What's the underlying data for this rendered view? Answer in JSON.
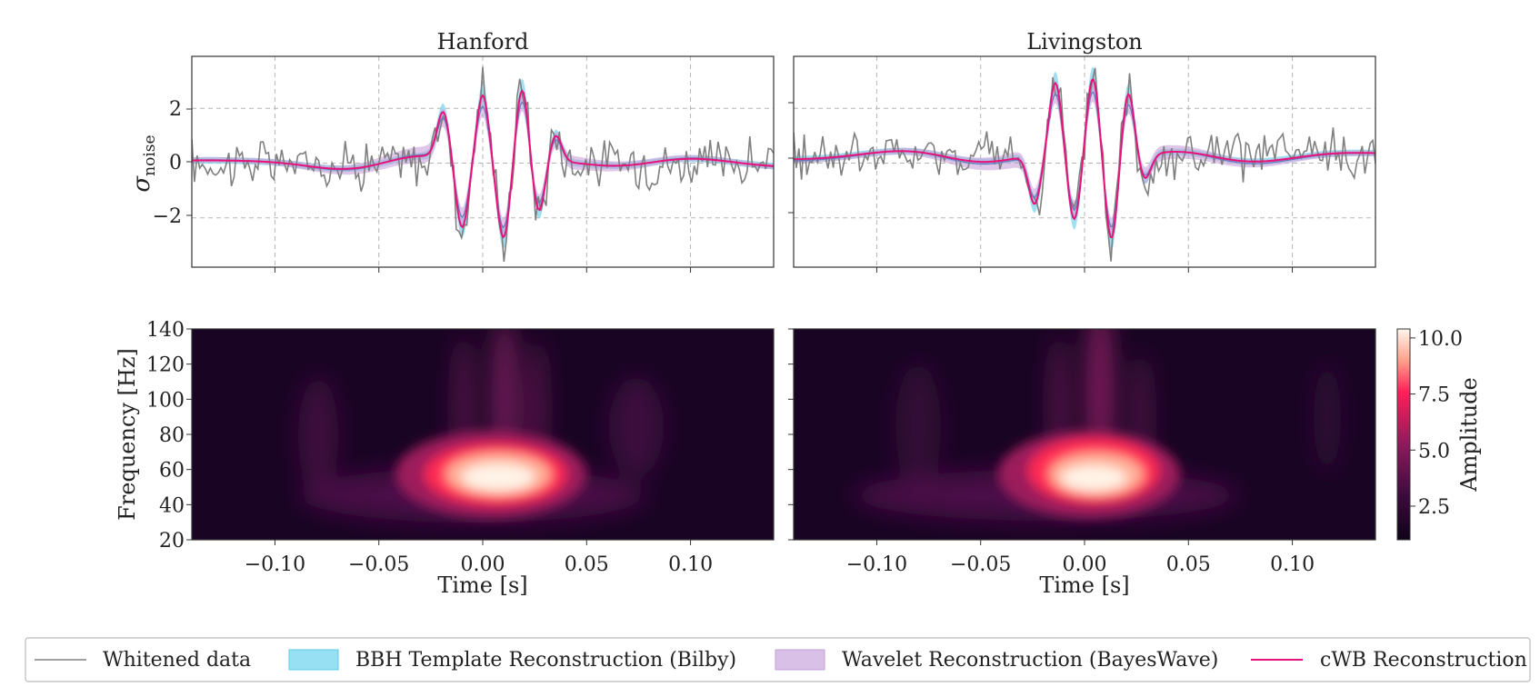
{
  "chart_data": [
    {
      "type": "line",
      "title": "Hanford",
      "ylabel_main": "σ",
      "ylabel_sub": "noise",
      "xlim": [
        -0.14,
        0.14
      ],
      "ylim": [
        -3.8,
        3.9
      ],
      "yticks": [
        "2",
        "0",
        "−2"
      ],
      "xticks": [
        -0.1,
        -0.05,
        0.0,
        0.05,
        0.1
      ],
      "grid": true,
      "series": [
        {
          "name": "Whitened data",
          "color": "#808080"
        },
        {
          "name": "BBH Template Reconstruction (Bilby)",
          "color": "#7ed6ee"
        },
        {
          "name": "Wavelet Reconstruction (BayesWave)",
          "color": "#c8a2d8"
        },
        {
          "name": "cWB Reconstruction",
          "color": "#e8137a"
        }
      ],
      "peaks": [
        {
          "t": -0.019,
          "v": 1.7
        },
        {
          "t": -0.01,
          "v": -2.4
        },
        {
          "t": 0.0,
          "v": 2.6
        },
        {
          "t": 0.01,
          "v": -2.6
        },
        {
          "t": 0.019,
          "v": 2.8
        },
        {
          "t": 0.027,
          "v": -1.8
        },
        {
          "t": 0.035,
          "v": 1.0
        }
      ]
    },
    {
      "type": "line",
      "title": "Livingston",
      "xlim": [
        -0.14,
        0.14
      ],
      "ylim": [
        -3.8,
        3.9
      ],
      "xticks": [
        -0.1,
        -0.05,
        0.0,
        0.05,
        0.1
      ],
      "grid": true,
      "peaks": [
        {
          "t": -0.024,
          "v": -1.8
        },
        {
          "t": -0.014,
          "v": 2.6
        },
        {
          "t": -0.005,
          "v": -2.4
        },
        {
          "t": 0.004,
          "v": 2.9
        },
        {
          "t": 0.013,
          "v": -3.0
        },
        {
          "t": 0.021,
          "v": 2.4
        },
        {
          "t": 0.029,
          "v": -0.9
        }
      ]
    },
    {
      "type": "heatmap",
      "detector": "Hanford",
      "ylabel": "Frequency [Hz]",
      "xlabel": "Time [s]",
      "xlim": [
        -0.14,
        0.14
      ],
      "ylim": [
        20,
        140
      ],
      "yticks": [
        "140",
        "120",
        "100",
        "80",
        "60",
        "40",
        "20"
      ],
      "xticklabels": [
        "−0.10",
        "−0.05",
        "0.00",
        "0.05",
        "0.10"
      ],
      "hotspot": {
        "t": 0.0,
        "f": 55,
        "amplitude": 10.0
      }
    },
    {
      "type": "heatmap",
      "detector": "Livingston",
      "xlabel": "Time [s]",
      "xlim": [
        -0.14,
        0.14
      ],
      "ylim": [
        20,
        140
      ],
      "xticklabels": [
        "−0.10",
        "−0.05",
        "0.00",
        "0.05",
        "0.10"
      ],
      "hotspot": {
        "t": 0.0,
        "f": 55,
        "amplitude": 10.0
      }
    }
  ],
  "colorbar": {
    "label": "Amplitude",
    "range": [
      1.0,
      10.4
    ],
    "ticks": [
      "10.0",
      "7.5",
      "5.0",
      "2.5"
    ],
    "tick_values": [
      10.0,
      7.5,
      5.0,
      2.5
    ]
  },
  "legend": {
    "items": [
      {
        "label": "Whitened data",
        "kind": "line",
        "color": "#808080"
      },
      {
        "label": "BBH Template Reconstruction (Bilby)",
        "kind": "patch",
        "color": "#97dff2",
        "edge": "#5ccbe8"
      },
      {
        "label": "Wavelet Reconstruction (BayesWave)",
        "kind": "patch",
        "color": "#d9c0e6",
        "edge": "#c39fd6"
      },
      {
        "label": "cWB Reconstruction",
        "kind": "line",
        "color": "#e8137a"
      }
    ]
  }
}
